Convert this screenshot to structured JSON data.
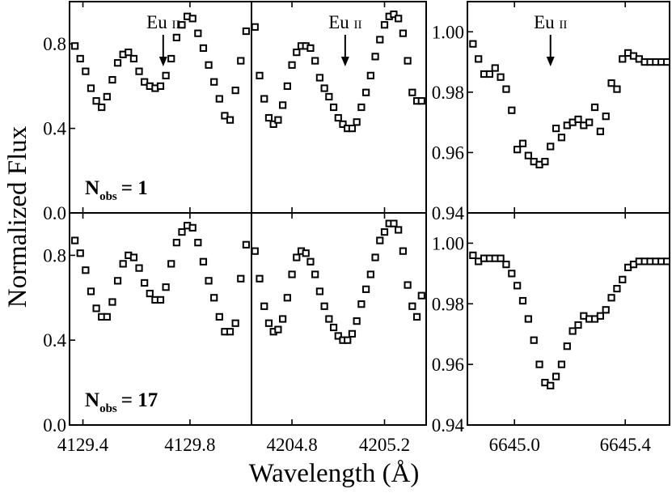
{
  "figure": {
    "ylabel": "Normalized Flux",
    "xlabel": "Wavelength (Å)"
  },
  "chart_data": [
    {
      "type": "scatter",
      "panel": "top-left",
      "row": 1,
      "annotation": {
        "text": "Eu",
        "ion": "II",
        "x": 4129.7
      },
      "label": {
        "main": "N",
        "sub": "obs",
        "value": "= 1"
      },
      "xlim": [
        4129.35,
        4130.03
      ],
      "ylim": [
        0.0,
        1.0
      ],
      "xticks": [
        4129.4,
        4129.8
      ],
      "yticks": [
        0.0,
        0.4,
        0.8
      ],
      "ytick_labels": [
        "0.0",
        "0.4",
        "0.8"
      ],
      "x": [
        4129.37,
        4129.39,
        4129.41,
        4129.43,
        4129.45,
        4129.47,
        4129.49,
        4129.51,
        4129.53,
        4129.55,
        4129.57,
        4129.59,
        4129.61,
        4129.63,
        4129.65,
        4129.67,
        4129.69,
        4129.71,
        4129.73,
        4129.75,
        4129.77,
        4129.79,
        4129.81,
        4129.83,
        4129.85,
        4129.87,
        4129.89,
        4129.91,
        4129.93,
        4129.95,
        4129.97,
        4129.99,
        4130.01
      ],
      "y": [
        0.79,
        0.73,
        0.67,
        0.59,
        0.53,
        0.5,
        0.55,
        0.63,
        0.71,
        0.75,
        0.76,
        0.73,
        0.67,
        0.62,
        0.6,
        0.59,
        0.6,
        0.65,
        0.73,
        0.83,
        0.89,
        0.93,
        0.92,
        0.85,
        0.78,
        0.7,
        0.62,
        0.54,
        0.46,
        0.44,
        0.58,
        0.72,
        0.86
      ]
    },
    {
      "type": "scatter",
      "panel": "top-middle",
      "row": 1,
      "annotation": {
        "text": "Eu",
        "ion": "II",
        "x": 4205.03
      },
      "xlim": [
        4204.625,
        4205.38
      ],
      "ylim": [
        0.0,
        1.0
      ],
      "xticks": [
        4204.8,
        4205.2
      ],
      "x": [
        4204.64,
        4204.66,
        4204.68,
        4204.7,
        4204.72,
        4204.74,
        4204.76,
        4204.78,
        4204.8,
        4204.82,
        4204.84,
        4204.86,
        4204.88,
        4204.9,
        4204.92,
        4204.94,
        4204.96,
        4204.98,
        4205.0,
        4205.02,
        4205.04,
        4205.06,
        4205.08,
        4205.1,
        4205.12,
        4205.14,
        4205.16,
        4205.18,
        4205.2,
        4205.22,
        4205.24,
        4205.26,
        4205.28,
        4205.3,
        4205.32,
        4205.34,
        4205.36
      ],
      "y": [
        0.88,
        0.65,
        0.54,
        0.45,
        0.42,
        0.44,
        0.51,
        0.6,
        0.7,
        0.76,
        0.79,
        0.79,
        0.78,
        0.72,
        0.64,
        0.59,
        0.55,
        0.5,
        0.45,
        0.42,
        0.4,
        0.4,
        0.43,
        0.5,
        0.57,
        0.65,
        0.74,
        0.82,
        0.89,
        0.93,
        0.94,
        0.92,
        0.85,
        0.72,
        0.57,
        0.53,
        0.53
      ]
    },
    {
      "type": "scatter",
      "panel": "top-right",
      "row": 1,
      "annotation": {
        "text": "Eu",
        "ion": "II",
        "x": 6645.13
      },
      "xlim": [
        6644.83,
        6645.56
      ],
      "ylim": [
        0.94,
        1.01
      ],
      "xticks": [
        6645.0,
        6645.4
      ],
      "yticks": [
        0.94,
        0.96,
        0.98,
        1.0
      ],
      "ytick_labels": [
        "0.94",
        "0.96",
        "0.98",
        "1.00"
      ],
      "x": [
        6644.85,
        6644.87,
        6644.89,
        6644.91,
        6644.93,
        6644.95,
        6644.97,
        6644.99,
        6645.01,
        6645.03,
        6645.05,
        6645.07,
        6645.09,
        6645.11,
        6645.13,
        6645.15,
        6645.17,
        6645.19,
        6645.21,
        6645.23,
        6645.25,
        6645.27,
        6645.29,
        6645.31,
        6645.33,
        6645.35,
        6645.37,
        6645.39,
        6645.41,
        6645.43,
        6645.45,
        6645.47,
        6645.49,
        6645.51,
        6645.53,
        6645.55
      ],
      "y": [
        0.996,
        0.991,
        0.986,
        0.986,
        0.988,
        0.985,
        0.981,
        0.974,
        0.961,
        0.963,
        0.959,
        0.957,
        0.956,
        0.957,
        0.962,
        0.968,
        0.965,
        0.969,
        0.97,
        0.971,
        0.969,
        0.97,
        0.975,
        0.967,
        0.972,
        0.983,
        0.981,
        0.991,
        0.993,
        0.992,
        0.991,
        0.99,
        0.99,
        0.99,
        0.99,
        0.99
      ]
    },
    {
      "type": "scatter",
      "panel": "bottom-left",
      "row": 2,
      "label": {
        "main": "N",
        "sub": "obs",
        "value": "= 17"
      },
      "xlim": [
        4129.35,
        4130.03
      ],
      "ylim": [
        0.0,
        1.0
      ],
      "xticks": [
        4129.4,
        4129.8
      ],
      "yticks": [
        0.0,
        0.4,
        0.8
      ],
      "xtick_labels": [
        "4129.4",
        "4129.8"
      ],
      "ytick_labels": [
        "0.0",
        "0.4",
        "0.8"
      ],
      "x": [
        4129.37,
        4129.39,
        4129.41,
        4129.43,
        4129.45,
        4129.47,
        4129.49,
        4129.51,
        4129.53,
        4129.55,
        4129.57,
        4129.59,
        4129.61,
        4129.63,
        4129.65,
        4129.67,
        4129.69,
        4129.71,
        4129.73,
        4129.75,
        4129.77,
        4129.79,
        4129.81,
        4129.83,
        4129.85,
        4129.87,
        4129.89,
        4129.91,
        4129.93,
        4129.95,
        4129.97,
        4129.99,
        4130.01
      ],
      "y": [
        0.87,
        0.81,
        0.73,
        0.63,
        0.55,
        0.51,
        0.51,
        0.58,
        0.68,
        0.76,
        0.8,
        0.79,
        0.74,
        0.67,
        0.62,
        0.59,
        0.59,
        0.65,
        0.76,
        0.86,
        0.91,
        0.94,
        0.93,
        0.86,
        0.77,
        0.68,
        0.6,
        0.51,
        0.44,
        0.44,
        0.48,
        0.69,
        0.85
      ]
    },
    {
      "type": "scatter",
      "panel": "bottom-middle",
      "row": 2,
      "xlim": [
        4204.625,
        4205.38
      ],
      "ylim": [
        0.0,
        1.0
      ],
      "xticks": [
        4204.8,
        4205.2
      ],
      "xtick_labels": [
        "4204.8",
        "4205.2"
      ],
      "x": [
        4204.64,
        4204.66,
        4204.68,
        4204.7,
        4204.72,
        4204.74,
        4204.76,
        4204.78,
        4204.8,
        4204.82,
        4204.84,
        4204.86,
        4204.88,
        4204.9,
        4204.92,
        4204.94,
        4204.96,
        4204.98,
        4205.0,
        4205.02,
        4205.04,
        4205.06,
        4205.08,
        4205.1,
        4205.12,
        4205.14,
        4205.16,
        4205.18,
        4205.2,
        4205.22,
        4205.24,
        4205.26,
        4205.28,
        4205.3,
        4205.32,
        4205.34,
        4205.36
      ],
      "y": [
        0.82,
        0.69,
        0.56,
        0.48,
        0.44,
        0.45,
        0.5,
        0.6,
        0.71,
        0.79,
        0.82,
        0.81,
        0.77,
        0.71,
        0.63,
        0.56,
        0.5,
        0.46,
        0.42,
        0.4,
        0.4,
        0.43,
        0.49,
        0.57,
        0.64,
        0.71,
        0.79,
        0.87,
        0.91,
        0.95,
        0.95,
        0.92,
        0.82,
        0.66,
        0.56,
        0.51,
        0.61
      ]
    },
    {
      "type": "scatter",
      "panel": "bottom-right",
      "row": 2,
      "xlim": [
        6644.83,
        6645.56
      ],
      "ylim": [
        0.94,
        1.01
      ],
      "xticks": [
        6645.0,
        6645.4
      ],
      "yticks": [
        0.94,
        0.96,
        0.98,
        1.0
      ],
      "xtick_labels": [
        "6645.0",
        "6645.4"
      ],
      "ytick_labels": [
        "0.94",
        "0.96",
        "0.98",
        "1.00"
      ],
      "x": [
        6644.85,
        6644.87,
        6644.89,
        6644.91,
        6644.93,
        6644.95,
        6644.97,
        6644.99,
        6645.01,
        6645.03,
        6645.05,
        6645.07,
        6645.09,
        6645.11,
        6645.13,
        6645.15,
        6645.17,
        6645.19,
        6645.21,
        6645.23,
        6645.25,
        6645.27,
        6645.29,
        6645.31,
        6645.33,
        6645.35,
        6645.37,
        6645.39,
        6645.41,
        6645.43,
        6645.45,
        6645.47,
        6645.49,
        6645.51,
        6645.53,
        6645.55
      ],
      "y": [
        0.996,
        0.994,
        0.995,
        0.995,
        0.995,
        0.995,
        0.993,
        0.99,
        0.986,
        0.981,
        0.975,
        0.968,
        0.96,
        0.954,
        0.953,
        0.956,
        0.96,
        0.966,
        0.971,
        0.973,
        0.976,
        0.975,
        0.975,
        0.976,
        0.978,
        0.982,
        0.985,
        0.988,
        0.992,
        0.993,
        0.994,
        0.994,
        0.994,
        0.994,
        0.994,
        0.994
      ]
    }
  ]
}
